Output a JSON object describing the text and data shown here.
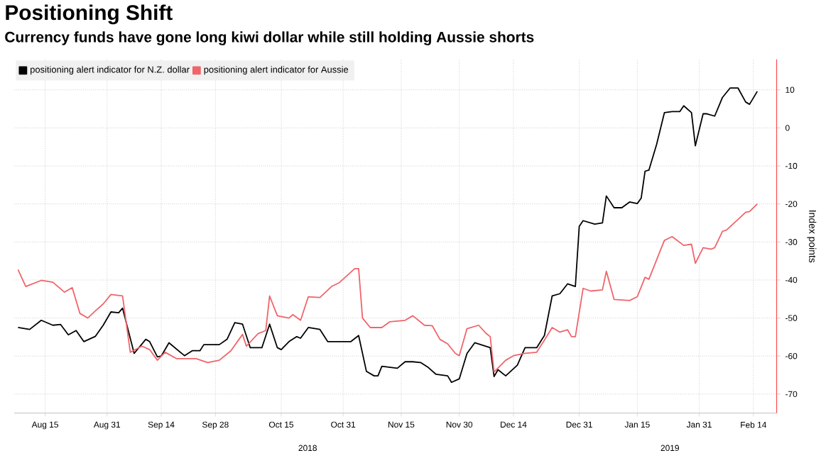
{
  "chart_data": {
    "type": "line",
    "title": "Positioning Shift",
    "subtitle": "Currency funds have gone long kiwi dollar while still holding Aussie shorts",
    "ylabel": "Index points",
    "annotations": [
      "2018",
      "2019"
    ],
    "legend": "top left",
    "grid": true,
    "xlim": [
      "2018-08-07",
      "2019-02-20"
    ],
    "ylim": [
      -75,
      18
    ],
    "xticks": [
      {
        "value": "2018-08-15",
        "label": "Aug 15"
      },
      {
        "value": "2018-08-31",
        "label": "Aug 31"
      },
      {
        "value": "2018-09-14",
        "label": "Sep 14"
      },
      {
        "value": "2018-09-28",
        "label": "Sep 28"
      },
      {
        "value": "2018-10-15",
        "label": "Oct 15"
      },
      {
        "value": "2018-10-31",
        "label": "Oct 31"
      },
      {
        "value": "2018-11-15",
        "label": "Nov 15"
      },
      {
        "value": "2018-11-30",
        "label": "Nov 30"
      },
      {
        "value": "2018-12-14",
        "label": "Dec 14"
      },
      {
        "value": "2018-12-31",
        "label": "Dec 31"
      },
      {
        "value": "2019-01-15",
        "label": "Jan 15"
      },
      {
        "value": "2019-01-31",
        "label": "Jan 31"
      },
      {
        "value": "2019-02-14",
        "label": "Feb 14"
      }
    ],
    "yticks": [
      -70,
      -60,
      -50,
      -40,
      -30,
      -20,
      -10,
      0,
      10
    ],
    "series": [
      {
        "name": "positioning alert indicator for N.Z. dollar",
        "color": "#000000",
        "x": [
          "2018-08-08",
          "2018-08-11",
          "2018-08-14",
          "2018-08-17",
          "2018-08-19",
          "2018-08-21",
          "2018-08-23",
          "2018-08-25",
          "2018-08-28",
          "2018-08-30",
          "2018-09-01",
          "2018-09-03",
          "2018-09-04",
          "2018-09-07",
          "2018-09-10",
          "2018-09-11",
          "2018-09-13",
          "2018-09-14",
          "2018-09-16",
          "2018-09-20",
          "2018-09-22",
          "2018-09-24",
          "2018-09-25",
          "2018-09-29",
          "2018-10-01",
          "2018-10-03",
          "2018-10-05",
          "2018-10-07",
          "2018-10-10",
          "2018-10-12",
          "2018-10-14",
          "2018-10-15",
          "2018-10-17",
          "2018-10-19",
          "2018-10-20",
          "2018-10-22",
          "2018-10-25",
          "2018-10-27",
          "2018-10-30",
          "2018-11-02",
          "2018-11-04",
          "2018-11-06",
          "2018-11-08",
          "2018-11-09",
          "2018-11-10",
          "2018-11-14",
          "2018-11-16",
          "2018-11-18",
          "2018-11-20",
          "2018-11-22",
          "2018-11-24",
          "2018-11-27",
          "2018-11-28",
          "2018-11-30",
          "2018-12-02",
          "2018-12-04",
          "2018-12-08",
          "2018-12-09",
          "2018-12-10",
          "2018-12-12",
          "2018-12-15",
          "2018-12-17",
          "2018-12-20",
          "2018-12-22",
          "2018-12-24",
          "2018-12-26",
          "2018-12-28",
          "2018-12-30",
          "2018-12-31",
          "2019-01-01",
          "2019-01-04",
          "2019-01-06",
          "2019-01-07",
          "2019-01-09",
          "2019-01-11",
          "2019-01-13",
          "2019-01-15",
          "2019-01-16",
          "2019-01-17",
          "2019-01-18",
          "2019-01-20",
          "2019-01-22",
          "2019-01-24",
          "2019-01-26",
          "2019-01-27",
          "2019-01-29",
          "2019-01-30",
          "2019-02-01",
          "2019-02-02",
          "2019-02-04",
          "2019-02-06",
          "2019-02-08",
          "2019-02-10",
          "2019-02-12",
          "2019-02-13",
          "2019-02-15"
        ],
        "values": [
          -52.5,
          -53,
          -50.6,
          -51.9,
          -51.7,
          -54.4,
          -53.3,
          -56.2,
          -54.8,
          -51.9,
          -48.4,
          -48.6,
          -47.4,
          -59.3,
          -55.6,
          -56.2,
          -60.2,
          -60,
          -56.5,
          -59.9,
          -58.6,
          -58.6,
          -57,
          -57,
          -55.6,
          -51.2,
          -51.6,
          -57.8,
          -57.8,
          -51.6,
          -57.8,
          -58.3,
          -56.2,
          -54.9,
          -55.3,
          -52.5,
          -53,
          -56.2,
          -56.2,
          -56.2,
          -54.6,
          -64,
          -65.2,
          -65.2,
          -62.7,
          -63.2,
          -61.5,
          -61.5,
          -61.7,
          -63,
          -64.8,
          -65.2,
          -66.9,
          -66,
          -59.3,
          -56.5,
          -57.8,
          -65.4,
          -63.6,
          -65.2,
          -62.4,
          -57.8,
          -57.8,
          -54.6,
          -44.2,
          -43.6,
          -41,
          -41.7,
          -25.9,
          -24.4,
          -25.3,
          -25,
          -17.9,
          -21,
          -21,
          -19.5,
          -19.9,
          -18.5,
          -11.4,
          -11.1,
          -4.3,
          4,
          4.3,
          4.3,
          5.8,
          4,
          -4.7,
          3.7,
          3.7,
          3.1,
          8,
          10.5,
          10.5,
          6.8,
          6.2,
          9.6
        ]
      },
      {
        "name": "positioning alert indicator for Aussie",
        "color": "#f0646a",
        "x": [
          "2018-08-08",
          "2018-08-10",
          "2018-08-14",
          "2018-08-17",
          "2018-08-20",
          "2018-08-22",
          "2018-08-24",
          "2018-08-26",
          "2018-08-28",
          "2018-08-30",
          "2018-09-01",
          "2018-09-04",
          "2018-09-06",
          "2018-09-09",
          "2018-09-11",
          "2018-09-13",
          "2018-09-15",
          "2018-09-18",
          "2018-09-23",
          "2018-09-26",
          "2018-09-29",
          "2018-10-02",
          "2018-10-05",
          "2018-10-06",
          "2018-10-09",
          "2018-10-11",
          "2018-10-12",
          "2018-10-14",
          "2018-10-17",
          "2018-10-18",
          "2018-10-20",
          "2018-10-22",
          "2018-10-25",
          "2018-10-28",
          "2018-10-30",
          "2018-11-03",
          "2018-11-04",
          "2018-11-05",
          "2018-11-07",
          "2018-11-10",
          "2018-11-12",
          "2018-11-16",
          "2018-11-18",
          "2018-11-21",
          "2018-11-23",
          "2018-11-25",
          "2018-11-27",
          "2018-11-29",
          "2018-11-30",
          "2018-12-02",
          "2018-12-05",
          "2018-12-07",
          "2018-12-08",
          "2018-12-09",
          "2018-12-12",
          "2018-12-14",
          "2018-12-17",
          "2018-12-20",
          "2018-12-22",
          "2018-12-24",
          "2018-12-26",
          "2018-12-28",
          "2018-12-29",
          "2018-12-30",
          "2019-01-01",
          "2019-01-03",
          "2019-01-06",
          "2019-01-07",
          "2019-01-09",
          "2019-01-13",
          "2019-01-15",
          "2019-01-17",
          "2019-01-18",
          "2019-01-21",
          "2019-01-22",
          "2019-01-24",
          "2019-01-27",
          "2019-01-29",
          "2019-01-30",
          "2019-02-01",
          "2019-02-03",
          "2019-02-04",
          "2019-02-06",
          "2019-02-07",
          "2019-02-10",
          "2019-02-12",
          "2019-02-13",
          "2019-02-15"
        ],
        "values": [
          -37.3,
          -41.7,
          -40.1,
          -40.6,
          -43.2,
          -42,
          -48.8,
          -50,
          -48.1,
          -46.3,
          -43.8,
          -44.2,
          -59,
          -57.4,
          -58.3,
          -61.1,
          -59,
          -60.7,
          -60.7,
          -61.7,
          -61.1,
          -58.6,
          -54.3,
          -57.4,
          -54.1,
          -53.3,
          -44.2,
          -49.4,
          -50,
          -49.1,
          -50.6,
          -44.4,
          -44.6,
          -41.7,
          -40.7,
          -37,
          -37,
          -50,
          -52.5,
          -52.5,
          -51,
          -50.6,
          -49.4,
          -51.9,
          -52,
          -55.6,
          -56.8,
          -59.3,
          -59.9,
          -52.8,
          -51.9,
          -54.1,
          -54.9,
          -64.2,
          -61.1,
          -59.9,
          -59.3,
          -59,
          -55.8,
          -52.5,
          -53.7,
          -53.1,
          -54.9,
          -54.9,
          -42.2,
          -42.9,
          -42.6,
          -37.7,
          -45.1,
          -45.4,
          -44.4,
          -39.3,
          -39.8,
          -32.1,
          -29.6,
          -28.6,
          -30.9,
          -30.6,
          -35.6,
          -31.5,
          -31.9,
          -31.5,
          -27.2,
          -26.9,
          -24.1,
          -22.2,
          -22,
          -20
        ]
      }
    ]
  }
}
